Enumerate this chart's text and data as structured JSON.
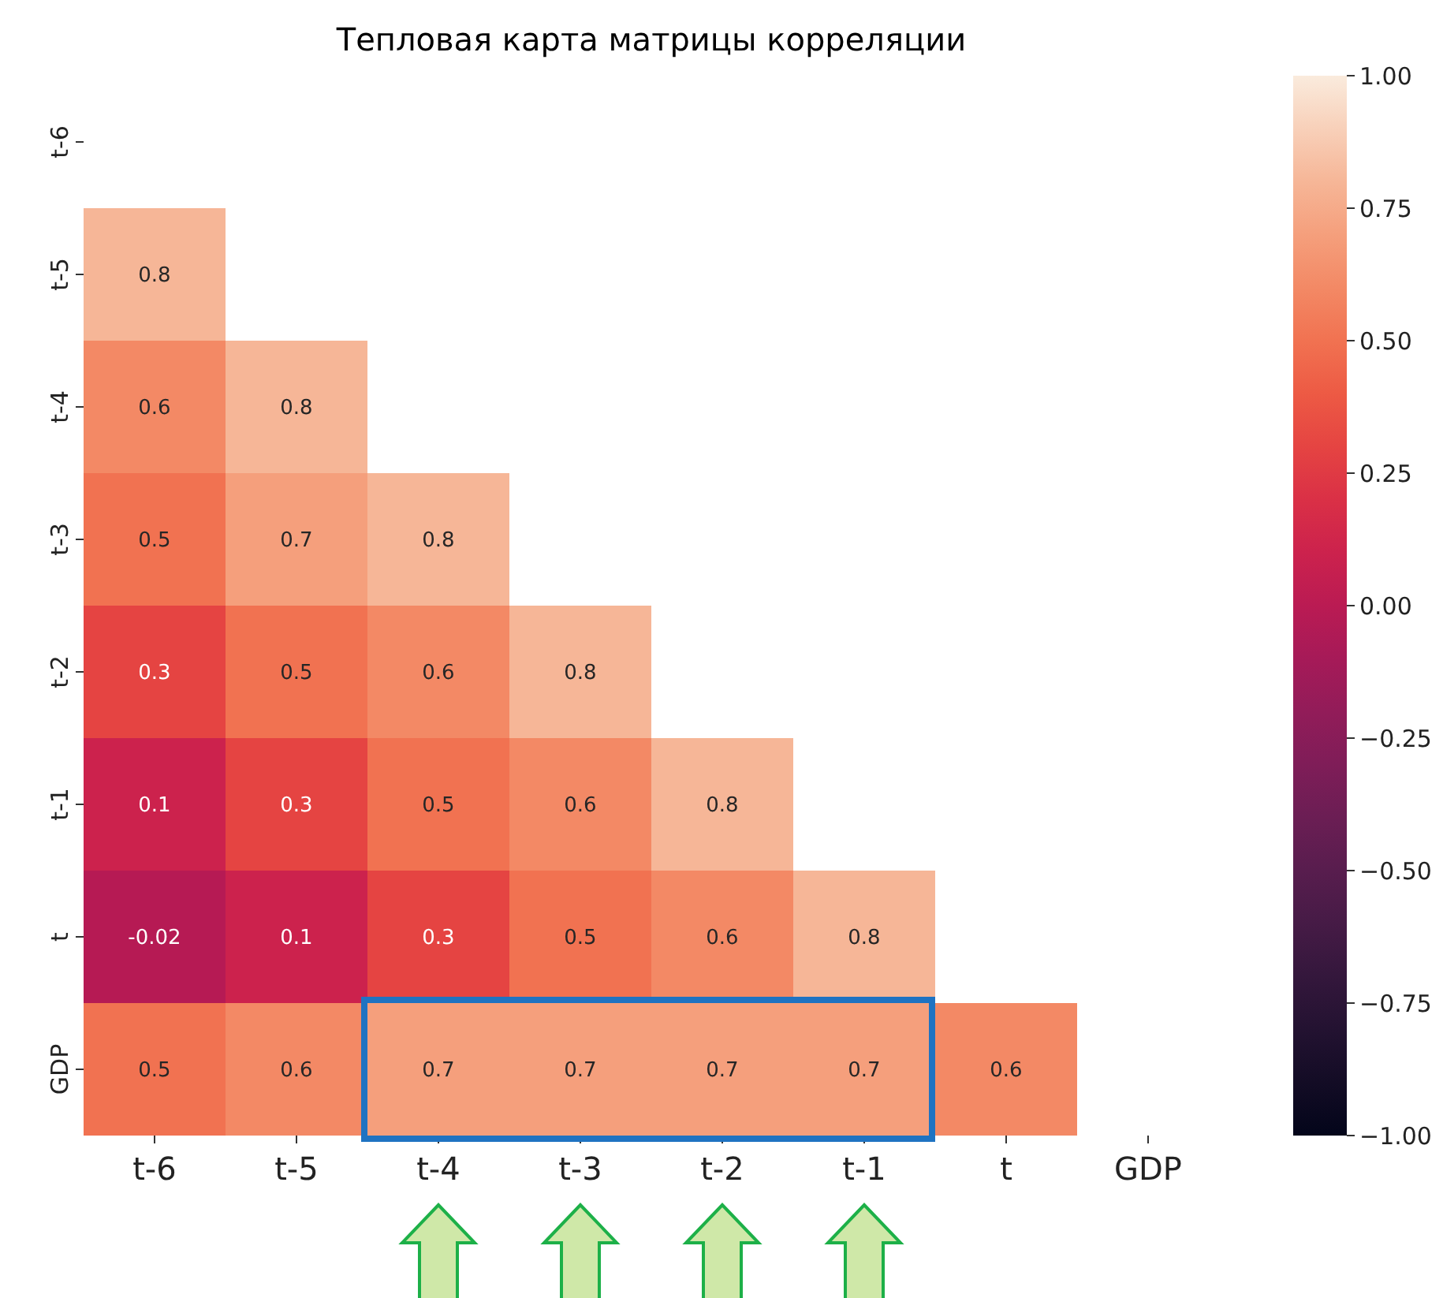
{
  "chart_data": {
    "type": "heatmap",
    "title": "Тепловая карта матрицы корреляции",
    "categories": [
      "t-6",
      "t-5",
      "t-4",
      "t-3",
      "t-2",
      "t-1",
      "t",
      "GDP"
    ],
    "y_categories": [
      "t-6",
      "t-5",
      "t-4",
      "t-3",
      "t-2",
      "t-1",
      "t",
      "GDP"
    ],
    "cells": [
      [
        null,
        null,
        null,
        null,
        null,
        null,
        null,
        null
      ],
      [
        0.8,
        null,
        null,
        null,
        null,
        null,
        null,
        null
      ],
      [
        0.6,
        0.8,
        null,
        null,
        null,
        null,
        null,
        null
      ],
      [
        0.5,
        0.7,
        0.8,
        null,
        null,
        null,
        null,
        null
      ],
      [
        0.3,
        0.5,
        0.6,
        0.8,
        null,
        null,
        null,
        null
      ],
      [
        0.1,
        0.3,
        0.5,
        0.6,
        0.8,
        null,
        null,
        null
      ],
      [
        -0.02,
        0.1,
        0.3,
        0.5,
        0.6,
        0.8,
        null,
        null
      ],
      [
        0.5,
        0.6,
        0.7,
        0.7,
        0.7,
        0.7,
        0.6,
        null
      ]
    ],
    "clim": [
      -1,
      1
    ],
    "cticks": [
      {
        "value": -1,
        "label": "−1.00"
      },
      {
        "value": -0.75,
        "label": "−0.75"
      },
      {
        "value": -0.5,
        "label": "−0.50"
      },
      {
        "value": -0.25,
        "label": "−0.25"
      },
      {
        "value": 0,
        "label": "0.00"
      },
      {
        "value": 0.25,
        "label": "0.25"
      },
      {
        "value": 0.5,
        "label": "0.50"
      },
      {
        "value": 0.75,
        "label": "0.75"
      },
      {
        "value": 1,
        "label": "1.00"
      }
    ],
    "data_labels": true
  }
}
